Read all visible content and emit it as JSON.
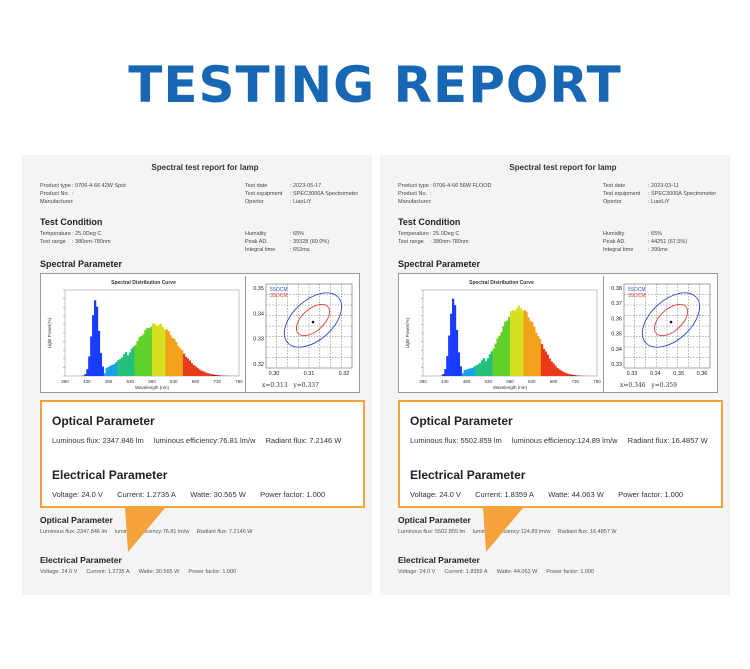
{
  "header": {
    "title": "TESTING REPORT"
  },
  "labels": {
    "sheet_title": "Spectral test report for lamp",
    "product_type": "Product type",
    "product_no": "Product No.",
    "manufacturer": "Manufacturer",
    "test_date": "Test date",
    "test_equipment": "Test equipment",
    "operator": "Opertor",
    "test_condition": "Test Condition",
    "temperature": "Temperature",
    "test_range": "Test range",
    "humidity": "Humidity",
    "peak_ad": "Peak AD.",
    "integral_time": "Integral time",
    "spectral_parameter": "Spectral Parameter",
    "chart_title": "Spectral Distribution Curve",
    "y_axis": "Light Power(%)",
    "x_axis": "Wavelength (nm)",
    "cie_legend_1": "5SDCM",
    "cie_legend_2": "3SDCM",
    "optical_parameter": "Optical Parameter",
    "electrical_parameter": "Electrical Parameter",
    "luminous_flux": "Luminous flux",
    "luminous_efficiency": "luminous efficiency",
    "radiant_flux": "Radiant flux",
    "voltage": "Voltage",
    "current": "Current",
    "watte": "Watte",
    "power_factor": "Power factor"
  },
  "reports": [
    {
      "product_type": ": 0706-4-66 42W Spot",
      "product_no": ":",
      "manufacturer": ":",
      "test_date": ": 2023-05-17",
      "test_equipment": ": SPEC3000A Spectrometer",
      "operator": ": LiaoLiY",
      "temperature": ": 25.0Deg C",
      "test_range": ": 380nm-780nm",
      "humidity": ": 65%",
      "peak_ad": ": 39328 (60.0%)",
      "integral_time": ": 653ms",
      "x_ticks": [
        "380",
        "430",
        "480",
        "530",
        "580",
        "630",
        "680",
        "730",
        "780"
      ],
      "cie_x_ticks": [
        "0.30",
        "0.31",
        "0.32"
      ],
      "cie_y_ticks": [
        "0.35",
        "0.34",
        "0.33",
        "0.32"
      ],
      "cie_x": "x=0.313",
      "cie_y": "y=0.337",
      "luminous_flux": "Luminous flux: 2347.846 lm",
      "luminous_efficiency": "luminous efficiency:76.81 lm/w",
      "radiant_flux": "Radiant flux: 7.2146 W",
      "voltage": "Voltage: 24.0  V",
      "current": "Current: 1.2735  A",
      "watte": "Watte: 30.565  W",
      "power_factor": "Power factor: 1.000",
      "luminous_flux_small": "Luminous flux: 2347.846 lm",
      "luminous_efficiency_small": "luminous efficiency:76.81 lm/w",
      "radiant_flux_small": "Radiant flux: 7.2146 W",
      "voltage_small": "Voltage: 24.0  V",
      "current_small": "Current: 1.2735  A",
      "watte_small": "Watte: 30.565  W",
      "power_factor_small": "Power factor: 1.000"
    },
    {
      "product_type": ": 0706-4-66 56W FLOOD",
      "product_no": ":",
      "manufacturer": ":",
      "test_date": ": 2023-03-11",
      "test_equipment": ": SPEC3000A Spectrometer",
      "operator": ": LiaoLiY",
      "temperature": ": 25.0Deg C",
      "test_range": ": 380nm-780nm",
      "humidity": ": 65%",
      "peak_ad": ": 44251 (67.5%)",
      "integral_time": ": 399ms",
      "x_ticks": [
        "380",
        "430",
        "480",
        "530",
        "580",
        "630",
        "680",
        "730",
        "780"
      ],
      "cie_x_ticks": [
        "0.33",
        "0.34",
        "0.35",
        "0.36"
      ],
      "cie_y_ticks": [
        "0.38",
        "0.37",
        "0.36",
        "0.35",
        "0.34",
        "0.33"
      ],
      "cie_x": "x=0.346",
      "cie_y": "y=0.359",
      "luminous_flux": "Luminous flux: 5502.859 lm",
      "luminous_efficiency": "luminous efficiency:124.89 lm/w",
      "radiant_flux": "Radiant flux: 16.4857 W",
      "voltage": "Voltage: 24.0  V",
      "current": "Current: 1.8359  A",
      "watte": "Watte: 44.063  W",
      "power_factor": "Power factor: 1.000",
      "luminous_flux_small": "Luminous flux: 5502.859 lm",
      "luminous_efficiency_small": "luminous efficiency:124.89 lm/w",
      "radiant_flux_small": "Radiant flux: 16.4857 W",
      "voltage_small": "Voltage: 24.0  V",
      "current_small": "Current: 1.8359  A",
      "watte_small": "Watte: 44.063  W",
      "power_factor_small": "Power factor: 1.000"
    }
  ],
  "colors": {
    "title": "#1767b5",
    "highlight": "#f3a33a",
    "cie_outer": "#2b4fc4",
    "cie_inner": "#d9403a"
  }
}
